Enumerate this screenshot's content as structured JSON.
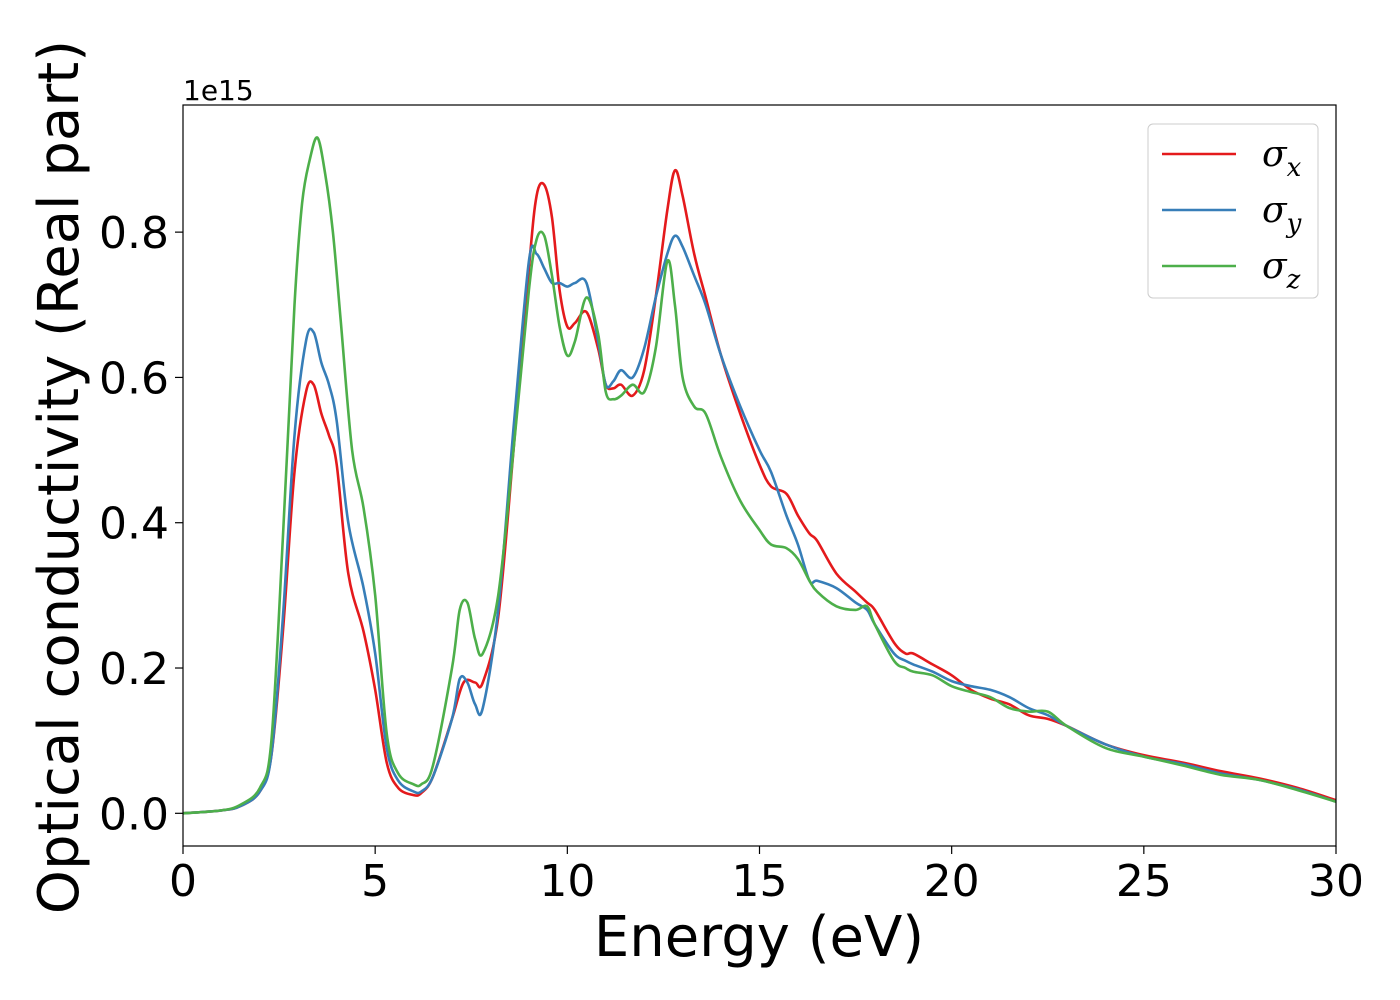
{
  "chart_data": {
    "type": "line",
    "xlabel": "Energy (eV)",
    "ylabel": "Optical conductivity (Real part)",
    "y_offset_text": "1e15",
    "y_scale": 1000000000000000.0,
    "xlim": [
      0,
      30
    ],
    "ylim": [
      -0.045,
      0.975
    ],
    "xticks": [
      0,
      5,
      10,
      15,
      20,
      25,
      30
    ],
    "xtick_labels": [
      "0",
      "5",
      "10",
      "15",
      "20",
      "25",
      "30"
    ],
    "yticks": [
      0.0,
      0.2,
      0.4,
      0.6,
      0.8
    ],
    "ytick_labels": [
      "0.0",
      "0.2",
      "0.4",
      "0.6",
      "0.8"
    ],
    "grid": false,
    "legend_position": "top-right",
    "series": [
      {
        "name": "σx",
        "symbol": "σ",
        "subscript": "x",
        "color": "#e41a1c",
        "x": [
          0,
          1,
          1.5,
          2,
          2.3,
          2.6,
          2.9,
          3.2,
          3.4,
          3.6,
          3.8,
          4.0,
          4.3,
          4.7,
          5.0,
          5.3,
          5.6,
          6.0,
          6.2,
          6.5,
          7.0,
          7.3,
          7.6,
          7.8,
          8.2,
          8.6,
          9.0,
          9.2,
          9.4,
          9.6,
          9.8,
          10.0,
          10.2,
          10.5,
          10.8,
          11.0,
          11.2,
          11.4,
          11.7,
          12.0,
          12.3,
          12.6,
          12.8,
          13.0,
          13.3,
          13.6,
          14.0,
          14.5,
          15.0,
          15.3,
          15.7,
          16.0,
          16.3,
          16.5,
          17.0,
          17.5,
          17.8,
          18.0,
          18.5,
          18.8,
          19.0,
          19.5,
          20.0,
          20.5,
          21.0,
          21.5,
          22.0,
          22.5,
          23.0,
          24.0,
          25.0,
          26.0,
          27.0,
          28.0,
          29.0,
          30.0
        ],
        "y": [
          0.0,
          0.004,
          0.01,
          0.03,
          0.08,
          0.25,
          0.47,
          0.58,
          0.59,
          0.55,
          0.52,
          0.48,
          0.33,
          0.25,
          0.17,
          0.07,
          0.035,
          0.025,
          0.028,
          0.05,
          0.13,
          0.18,
          0.18,
          0.18,
          0.27,
          0.5,
          0.75,
          0.85,
          0.865,
          0.82,
          0.72,
          0.67,
          0.675,
          0.69,
          0.64,
          0.59,
          0.585,
          0.59,
          0.575,
          0.61,
          0.71,
          0.83,
          0.885,
          0.85,
          0.77,
          0.71,
          0.63,
          0.55,
          0.48,
          0.45,
          0.44,
          0.41,
          0.385,
          0.375,
          0.33,
          0.305,
          0.29,
          0.28,
          0.235,
          0.22,
          0.22,
          0.205,
          0.19,
          0.17,
          0.158,
          0.15,
          0.135,
          0.13,
          0.12,
          0.095,
          0.08,
          0.07,
          0.058,
          0.048,
          0.035,
          0.018
        ]
      },
      {
        "name": "σy",
        "symbol": "σ",
        "subscript": "y",
        "color": "#377eb8",
        "x": [
          0,
          1,
          1.5,
          2,
          2.3,
          2.6,
          2.9,
          3.2,
          3.4,
          3.6,
          3.8,
          4.0,
          4.3,
          4.7,
          5.0,
          5.3,
          5.6,
          6.0,
          6.2,
          6.5,
          7.0,
          7.2,
          7.4,
          7.6,
          7.8,
          8.2,
          8.6,
          9.0,
          9.2,
          9.4,
          9.6,
          9.8,
          10.0,
          10.2,
          10.5,
          10.8,
          11.0,
          11.2,
          11.4,
          11.7,
          12.0,
          12.3,
          12.6,
          12.8,
          13.0,
          13.3,
          13.6,
          14.0,
          14.5,
          15.0,
          15.3,
          15.7,
          16.0,
          16.3,
          16.5,
          17.0,
          17.5,
          17.8,
          18.0,
          18.5,
          18.8,
          19.0,
          19.5,
          20.0,
          20.5,
          21.0,
          21.5,
          22.0,
          22.5,
          23.0,
          24.0,
          25.0,
          26.0,
          27.0,
          28.0,
          29.0,
          30.0
        ],
        "y": [
          0.0,
          0.004,
          0.01,
          0.03,
          0.08,
          0.27,
          0.52,
          0.65,
          0.662,
          0.62,
          0.59,
          0.54,
          0.4,
          0.31,
          0.22,
          0.09,
          0.045,
          0.03,
          0.03,
          0.05,
          0.13,
          0.185,
          0.18,
          0.15,
          0.145,
          0.28,
          0.53,
          0.76,
          0.77,
          0.75,
          0.73,
          0.73,
          0.725,
          0.73,
          0.73,
          0.65,
          0.59,
          0.595,
          0.61,
          0.6,
          0.64,
          0.71,
          0.77,
          0.795,
          0.78,
          0.74,
          0.7,
          0.63,
          0.56,
          0.5,
          0.47,
          0.41,
          0.37,
          0.32,
          0.32,
          0.31,
          0.29,
          0.28,
          0.26,
          0.22,
          0.21,
          0.205,
          0.195,
          0.182,
          0.175,
          0.17,
          0.16,
          0.145,
          0.135,
          0.12,
          0.095,
          0.078,
          0.068,
          0.055,
          0.046,
          0.033,
          0.016
        ]
      },
      {
        "name": "σz",
        "symbol": "σ",
        "subscript": "z",
        "color": "#4daf4a",
        "x": [
          0,
          1,
          1.5,
          2,
          2.3,
          2.6,
          2.9,
          3.1,
          3.3,
          3.5,
          3.7,
          3.9,
          4.1,
          4.4,
          4.7,
          5.0,
          5.3,
          5.6,
          6.0,
          6.2,
          6.5,
          7.0,
          7.2,
          7.4,
          7.6,
          7.8,
          8.2,
          8.6,
          9.0,
          9.2,
          9.4,
          9.6,
          9.8,
          10.0,
          10.2,
          10.5,
          10.8,
          11.0,
          11.2,
          11.4,
          11.7,
          12.0,
          12.3,
          12.6,
          12.8,
          13.0,
          13.3,
          13.6,
          14.0,
          14.5,
          15.0,
          15.3,
          15.7,
          16.0,
          16.3,
          16.5,
          17.0,
          17.5,
          17.8,
          18.0,
          18.5,
          18.8,
          19.0,
          19.5,
          20.0,
          20.5,
          21.0,
          21.5,
          22.0,
          22.5,
          23.0,
          24.0,
          25.0,
          26.0,
          27.0,
          28.0,
          29.0,
          30.0
        ],
        "y": [
          0.0,
          0.004,
          0.012,
          0.035,
          0.1,
          0.38,
          0.7,
          0.84,
          0.9,
          0.93,
          0.88,
          0.8,
          0.68,
          0.5,
          0.42,
          0.3,
          0.11,
          0.055,
          0.04,
          0.04,
          0.065,
          0.2,
          0.28,
          0.29,
          0.24,
          0.22,
          0.3,
          0.5,
          0.72,
          0.79,
          0.795,
          0.74,
          0.67,
          0.63,
          0.65,
          0.71,
          0.66,
          0.58,
          0.57,
          0.575,
          0.59,
          0.58,
          0.64,
          0.76,
          0.7,
          0.6,
          0.56,
          0.55,
          0.49,
          0.43,
          0.39,
          0.37,
          0.365,
          0.35,
          0.32,
          0.305,
          0.285,
          0.28,
          0.285,
          0.26,
          0.21,
          0.2,
          0.195,
          0.19,
          0.175,
          0.167,
          0.16,
          0.145,
          0.14,
          0.14,
          0.12,
          0.09,
          0.078,
          0.066,
          0.053,
          0.046,
          0.032,
          0.016
        ]
      }
    ]
  }
}
